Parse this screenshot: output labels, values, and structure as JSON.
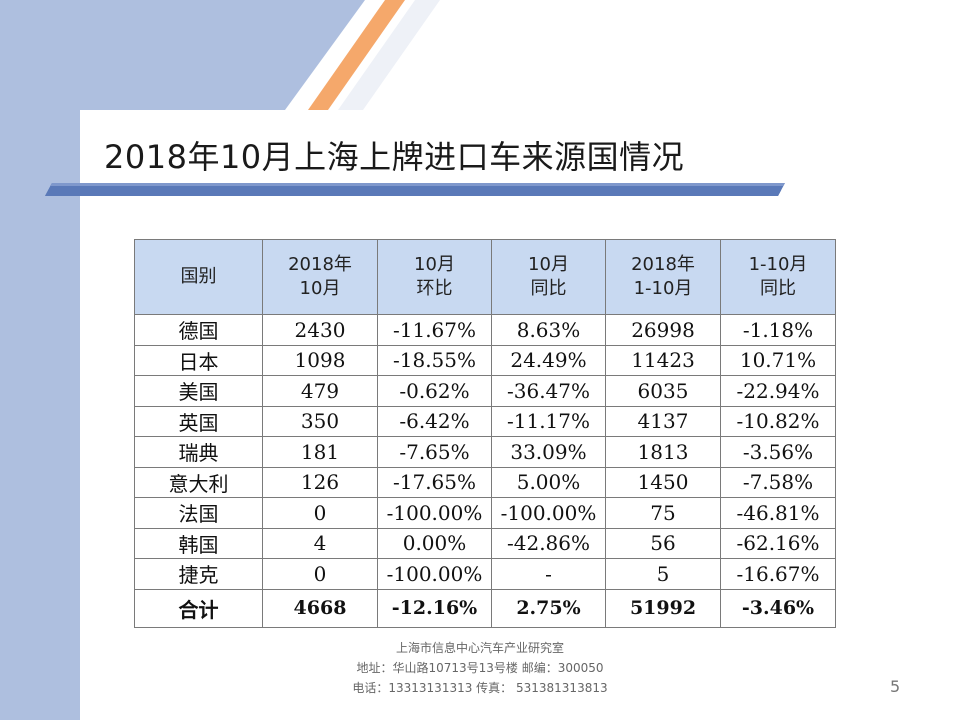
{
  "slide": {
    "title": "2018年10月上海上牌进口车来源国情况",
    "page_number": "5",
    "colors": {
      "side_panel": "#aebfdf",
      "accent_orange": "#f5a86b",
      "header_fill": "#c8d9f1",
      "stripe_blue": "#5a79b8"
    }
  },
  "table": {
    "headers": [
      {
        "line1": "国别",
        "line2": ""
      },
      {
        "line1": "2018年",
        "line2": "10月"
      },
      {
        "line1": "10月",
        "line2": "环比"
      },
      {
        "line1": "10月",
        "line2": "同比"
      },
      {
        "line1": "2018年",
        "line2": "1-10月"
      },
      {
        "line1": "1-10月",
        "line2": "同比"
      }
    ],
    "rows": [
      [
        "德国",
        "2430",
        "-11.67%",
        "8.63%",
        "26998",
        "-1.18%"
      ],
      [
        "日本",
        "1098",
        "-18.55%",
        "24.49%",
        "11423",
        "10.71%"
      ],
      [
        "美国",
        "479",
        "-0.62%",
        "-36.47%",
        "6035",
        "-22.94%"
      ],
      [
        "英国",
        "350",
        "-6.42%",
        "-11.17%",
        "4137",
        "-10.82%"
      ],
      [
        "瑞典",
        "181",
        "-7.65%",
        "33.09%",
        "1813",
        "-3.56%"
      ],
      [
        "意大利",
        "126",
        "-17.65%",
        "5.00%",
        "1450",
        "-7.58%"
      ],
      [
        "法国",
        "0",
        "-100.00%",
        "-100.00%",
        "75",
        "-46.81%"
      ],
      [
        "韩国",
        "4",
        "0.00%",
        "-42.86%",
        "56",
        "-62.16%"
      ],
      [
        "捷克",
        "0",
        "-100.00%",
        "-",
        "5",
        "-16.67%"
      ]
    ],
    "total": [
      "合计",
      "4668",
      "-12.16%",
      "2.75%",
      "51992",
      "-3.46%"
    ]
  },
  "footer": {
    "org": "上海市信息中心汽车产业研究室",
    "address": "地址：华山路10713号13号楼    邮编：300050",
    "contact": "电话：13313131313   传真： 531381313813"
  }
}
